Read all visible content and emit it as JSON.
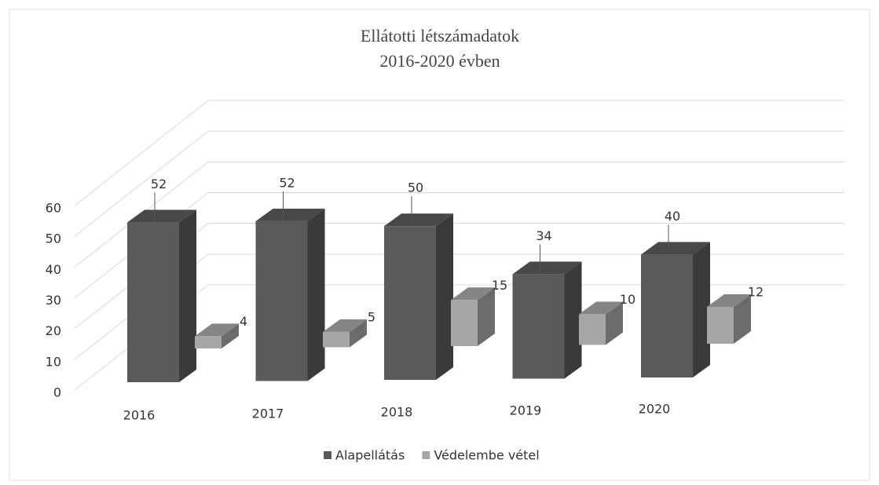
{
  "chart_data": {
    "type": "bar3d",
    "title": "Ellátotti létszámadatok",
    "subtitle": "2016-2020 évben",
    "categories": [
      "2016",
      "2017",
      "2018",
      "2019",
      "2020"
    ],
    "series": [
      {
        "name": "Alapellátás",
        "color": "#5a5a5a",
        "values": [
          52,
          52,
          50,
          34,
          40
        ]
      },
      {
        "name": "Védelembe vétel",
        "color": "#a6a6a6",
        "values": [
          4,
          5,
          15,
          10,
          12
        ]
      }
    ],
    "ylim": [
      0,
      60
    ],
    "yticks": [
      0,
      10,
      20,
      30,
      40,
      50,
      60
    ],
    "grid": true,
    "legend": "bottom"
  }
}
